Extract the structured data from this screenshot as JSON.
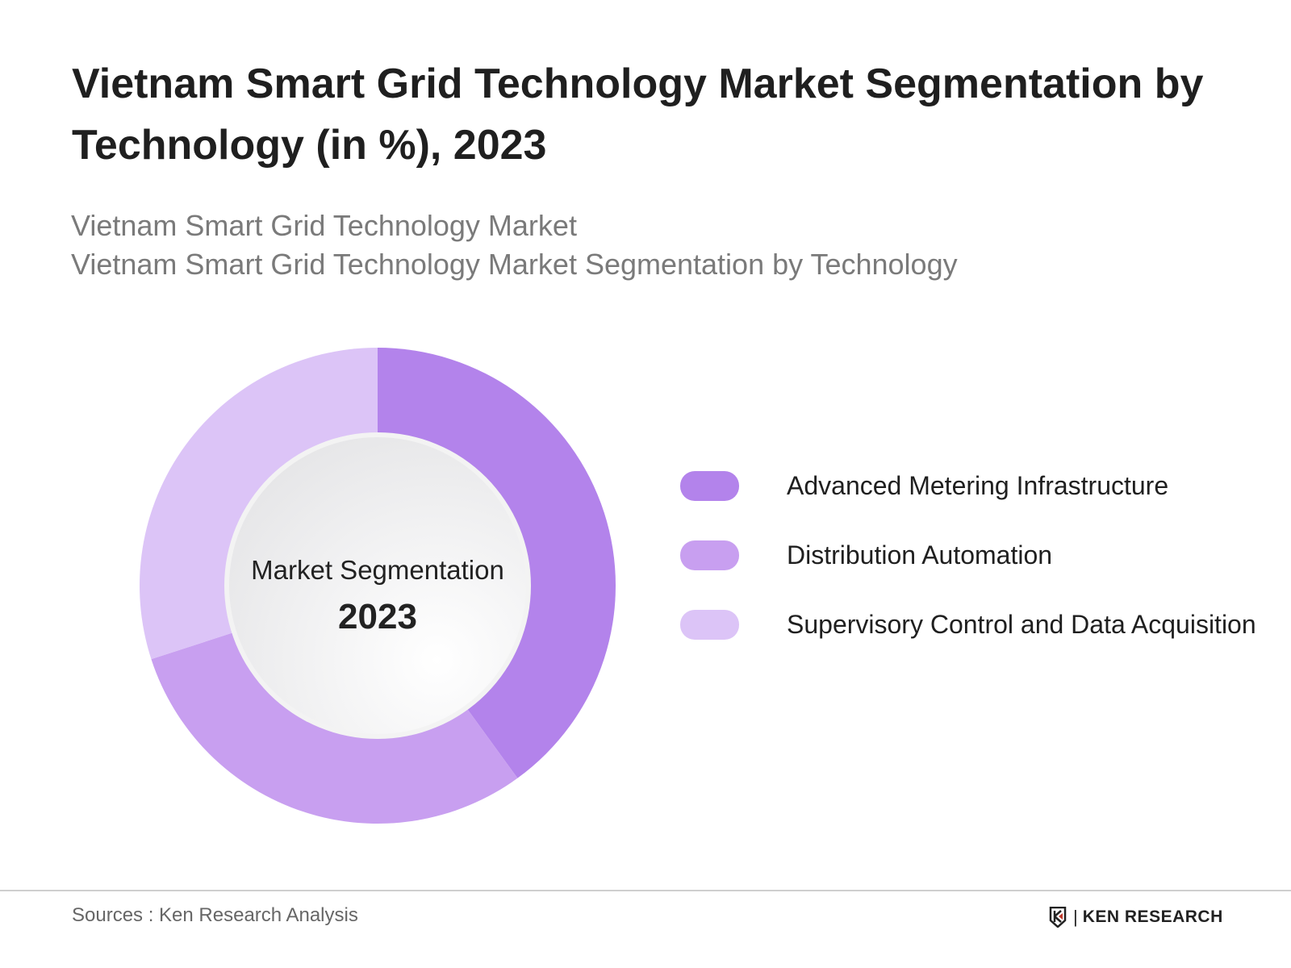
{
  "header": {
    "title": "Vietnam Smart Grid Technology Market Segmentation by Technology (in %), 2023",
    "subtitle_1": "Vietnam Smart Grid Technology Market",
    "subtitle_2": "Vietnam Smart Grid Technology Market Segmentation by Technology"
  },
  "chart_data": {
    "type": "pie",
    "variant": "donut",
    "categories": [
      "Advanced Metering Infrastructure",
      "Distribution Automation",
      "Supervisory Control and Data Acquisition"
    ],
    "values": [
      40,
      30,
      30
    ],
    "colors": [
      "#b383eb",
      "#c89ff0",
      "#dcc4f7"
    ],
    "center_label": "Market Segmentation",
    "center_year": "2023",
    "legend_position": "right"
  },
  "footer": {
    "source": "Sources : Ken Research Analysis",
    "logo_text": "KEN RESEARCH"
  }
}
